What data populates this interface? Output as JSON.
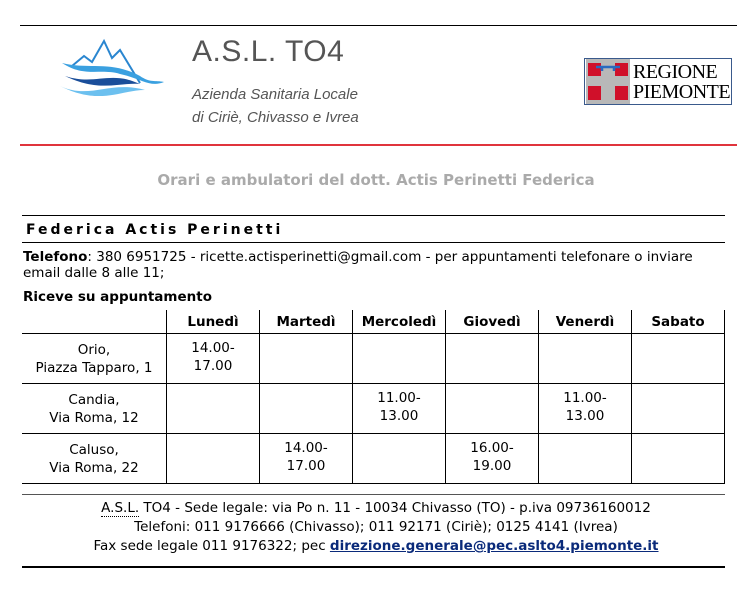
{
  "header": {
    "logo_title": "A.S.L. TO4",
    "logo_sub1": "Azienda Sanitaria Locale",
    "logo_sub2": "di Ciriè, Chivasso e Ivrea",
    "regione_line1": "REGIONE",
    "regione_line2": "PIEMONTE",
    "accent": "#e0343c"
  },
  "page_title": "Orari e ambulatori del dott. Actis Perinetti Federica",
  "doctor_name": "Federica Actis Perinetti",
  "contact": {
    "phone_label": "Telefono",
    "phone_text": ": 380 6951725 - ricette.actisperinetti@gmail.com - per appuntamenti telefonare o inviare email dalle 8 alle 11;"
  },
  "appointment_note": "Riceve su appuntamento",
  "table": {
    "days": [
      "Lunedì",
      "Martedì",
      "Mercoledì",
      "Giovedì",
      "Venerdì",
      "Sabato"
    ],
    "rows": [
      {
        "place1": "Orio,",
        "place2": "Piazza Tapparo, 1",
        "slots": [
          "14.00-\n17.00",
          "",
          "",
          "",
          "",
          ""
        ]
      },
      {
        "place1": "Candia,",
        "place2": "Via Roma, 12",
        "slots": [
          "",
          "",
          "11.00-\n13.00",
          "",
          "11.00-\n13.00",
          ""
        ]
      },
      {
        "place1": "Caluso,",
        "place2": "Via Roma, 22",
        "slots": [
          "",
          "14.00-\n17.00",
          "",
          "16.00-\n19.00",
          "",
          ""
        ]
      }
    ]
  },
  "footer": {
    "abbr": "A.S.L.",
    "line1": " TO4 - Sede legale: via Po n. 11 - 10034 Chivasso (TO) - p.iva 09736160012",
    "line2": "Telefoni: 011 9176666 (Chivasso); 011 92171 (Ciriè); 0125 4141 (Ivrea)",
    "line3": "Fax sede legale 011 9176322; pec ",
    "pec": "direzione.generale@pec.aslto4.piemonte.it"
  }
}
